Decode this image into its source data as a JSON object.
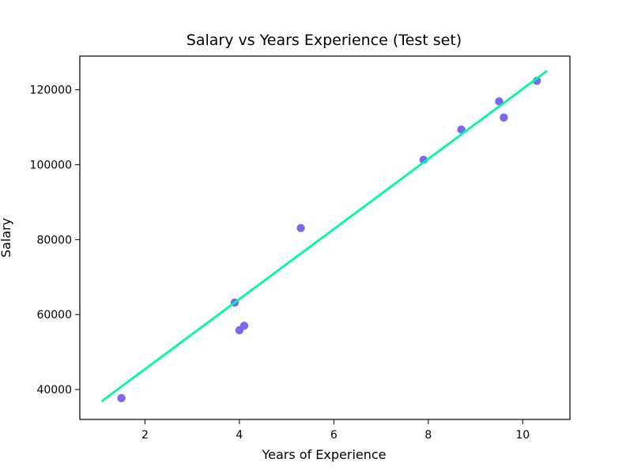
{
  "chart_data": {
    "type": "scatter",
    "title": "Salary vs Years Experience (Test set)",
    "xlabel": "Years of Experience",
    "ylabel": "Salary",
    "xlim": [
      0.62,
      11.0
    ],
    "ylim": [
      32000,
      129000
    ],
    "xticks": [
      2,
      4,
      6,
      8,
      10
    ],
    "yticks": [
      40000,
      60000,
      80000,
      100000,
      120000
    ],
    "grid": false,
    "legend": "none",
    "series": [
      {
        "type": "scatter",
        "color": "#7b68ee",
        "points": [
          {
            "x": 1.5,
            "y": 37700
          },
          {
            "x": 3.9,
            "y": 63200
          },
          {
            "x": 4.0,
            "y": 55800
          },
          {
            "x": 4.1,
            "y": 57000
          },
          {
            "x": 5.3,
            "y": 83100
          },
          {
            "x": 7.9,
            "y": 101300
          },
          {
            "x": 8.7,
            "y": 109400
          },
          {
            "x": 9.5,
            "y": 116900
          },
          {
            "x": 9.6,
            "y": 112600
          },
          {
            "x": 10.3,
            "y": 122400
          }
        ]
      },
      {
        "type": "line",
        "color": "#00fa9a",
        "points": [
          {
            "x": 1.1,
            "y": 37000
          },
          {
            "x": 10.5,
            "y": 124900
          }
        ]
      }
    ]
  }
}
